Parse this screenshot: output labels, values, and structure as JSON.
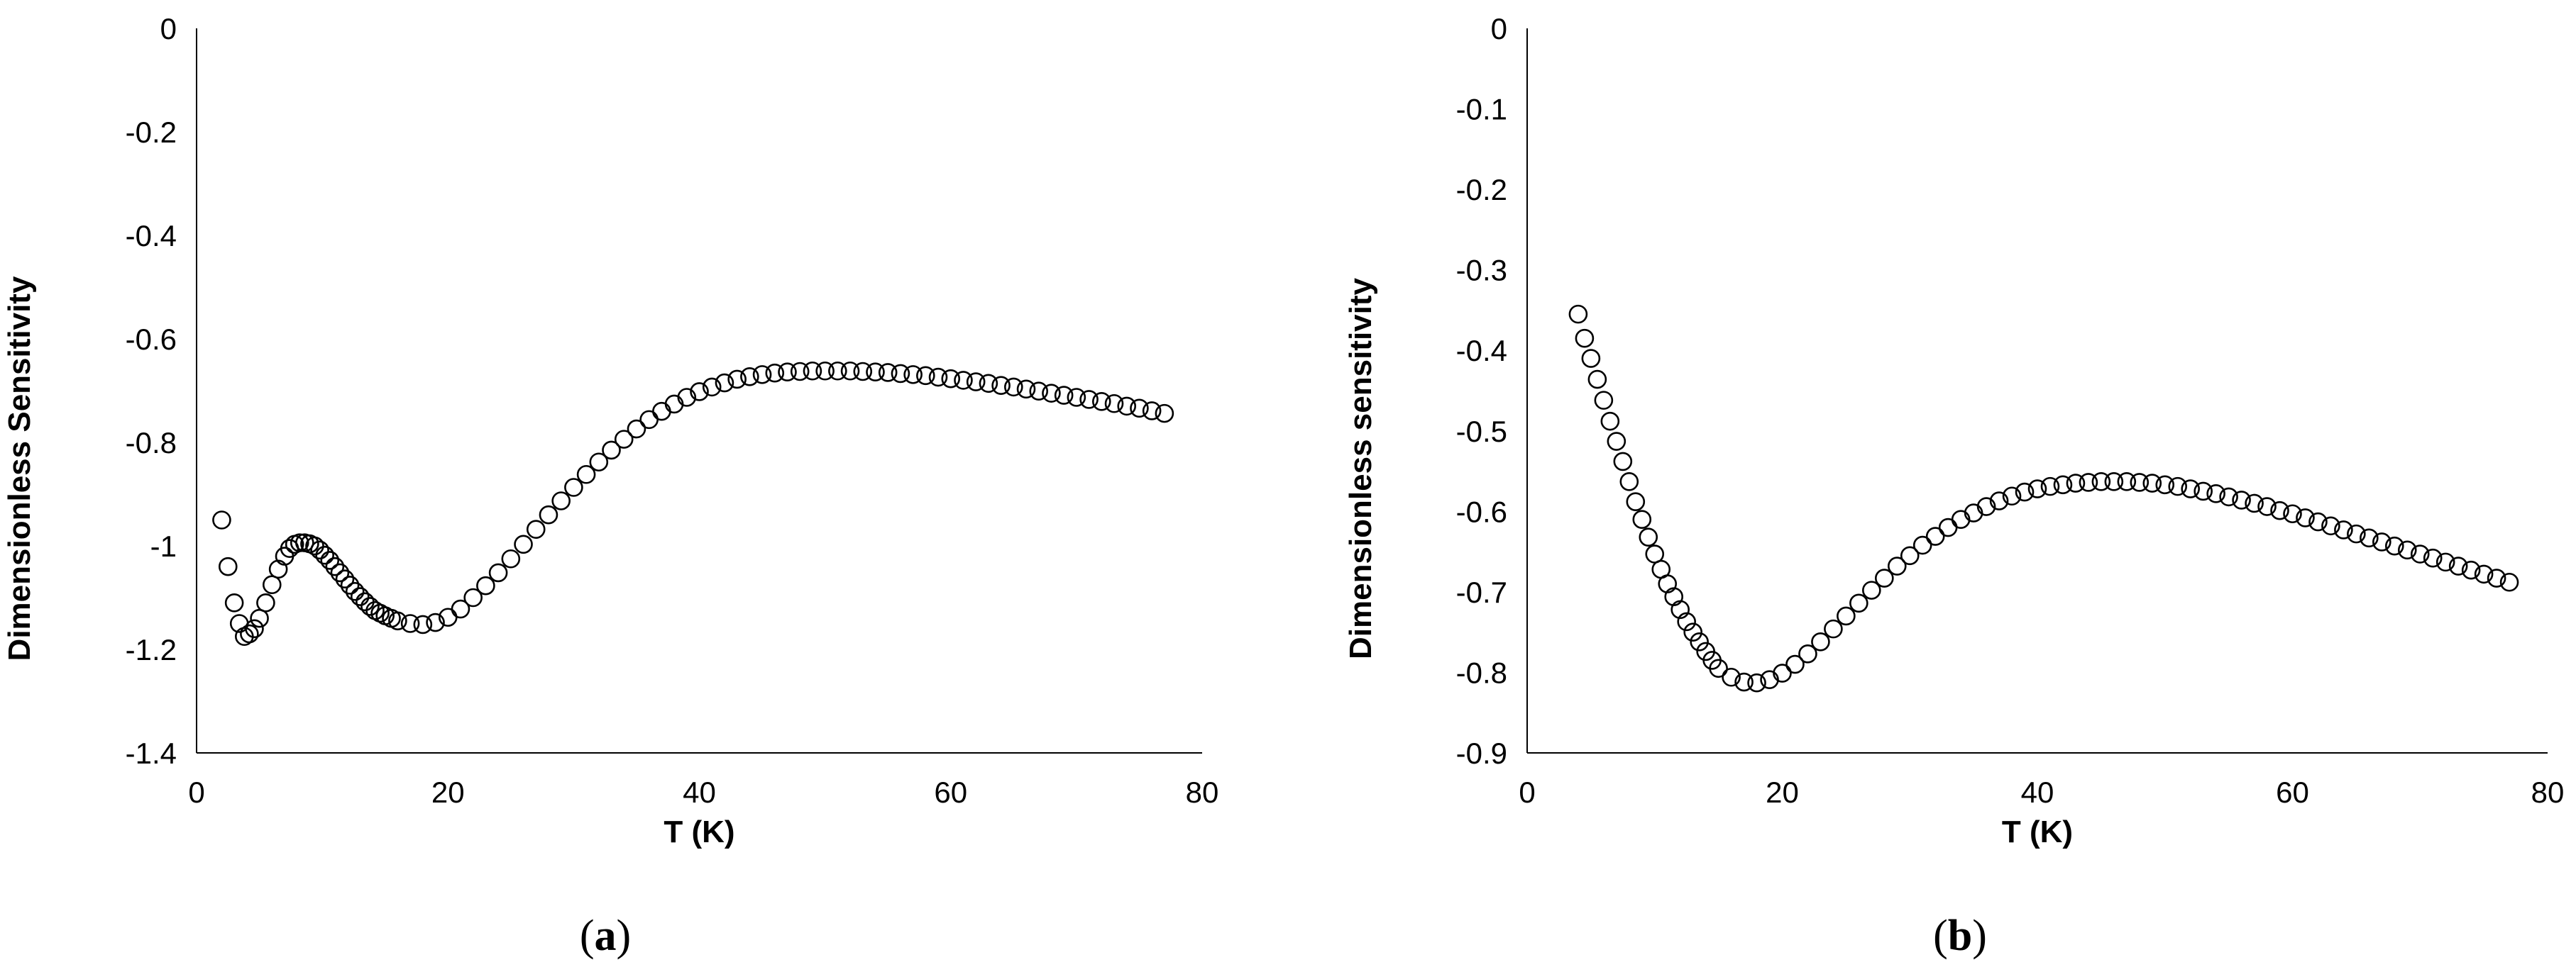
{
  "chart_data": [
    {
      "type": "scatter",
      "panel_label": "a",
      "xlabel": "T (K)",
      "ylabel": "Dimensionless Sensitivity",
      "xlim": [
        0,
        80
      ],
      "ylim": [
        -1.4,
        0
      ],
      "xticks": [
        0,
        20,
        40,
        60,
        80
      ],
      "yticks": [
        0,
        -0.2,
        -0.4,
        -0.6,
        -0.8,
        -1,
        -1.2,
        -1.4
      ],
      "xtick_labels": [
        "0",
        "20",
        "40",
        "60",
        "80"
      ],
      "ytick_labels": [
        "0",
        "-0.2",
        "-0.4",
        "-0.6",
        "-0.8",
        "-1",
        "-1.2",
        "-1.4"
      ],
      "grid": false,
      "legend": "none",
      "marker": "open-circle",
      "x": [
        2.0,
        2.5,
        3.0,
        3.4,
        3.8,
        4.2,
        4.6,
        5.0,
        5.5,
        6.0,
        6.5,
        7.0,
        7.4,
        7.8,
        8.2,
        8.6,
        9.0,
        9.4,
        9.8,
        10.2,
        10.6,
        11.0,
        11.4,
        11.8,
        12.2,
        12.6,
        13.0,
        13.4,
        13.8,
        14.2,
        14.6,
        15.0,
        15.5,
        16.0,
        17.0,
        18.0,
        19.0,
        20.0,
        21.0,
        22.0,
        23.0,
        24.0,
        25.0,
        26.0,
        27.0,
        28.0,
        29.0,
        30.0,
        31.0,
        32.0,
        33.0,
        34.0,
        35.0,
        36.0,
        37.0,
        38.0,
        39.0,
        40.0,
        41.0,
        42.0,
        43.0,
        44.0,
        45.0,
        46.0,
        47.0,
        48.0,
        49.0,
        50.0,
        51.0,
        52.0,
        53.0,
        54.0,
        55.0,
        56.0,
        57.0,
        58.0,
        59.0,
        60.0,
        61.0,
        62.0,
        63.0,
        64.0,
        65.0,
        66.0,
        67.0,
        68.0,
        69.0,
        70.0,
        71.0,
        72.0,
        73.0,
        74.0,
        75.0,
        76.0,
        77.0
      ],
      "y": [
        -0.95,
        -1.04,
        -1.11,
        -1.15,
        -1.175,
        -1.17,
        -1.16,
        -1.14,
        -1.11,
        -1.075,
        -1.045,
        -1.02,
        -1.005,
        -0.997,
        -0.994,
        -0.994,
        -0.996,
        -1.0,
        -1.008,
        -1.018,
        -1.028,
        -1.04,
        -1.052,
        -1.064,
        -1.076,
        -1.088,
        -1.098,
        -1.108,
        -1.117,
        -1.125,
        -1.13,
        -1.135,
        -1.14,
        -1.145,
        -1.15,
        -1.152,
        -1.148,
        -1.138,
        -1.122,
        -1.1,
        -1.077,
        -1.052,
        -1.025,
        -0.997,
        -0.968,
        -0.94,
        -0.913,
        -0.887,
        -0.862,
        -0.838,
        -0.815,
        -0.794,
        -0.774,
        -0.756,
        -0.74,
        -0.726,
        -0.713,
        -0.702,
        -0.693,
        -0.685,
        -0.678,
        -0.673,
        -0.669,
        -0.666,
        -0.664,
        -0.663,
        -0.662,
        -0.662,
        -0.662,
        -0.662,
        -0.663,
        -0.664,
        -0.665,
        -0.667,
        -0.669,
        -0.671,
        -0.674,
        -0.677,
        -0.68,
        -0.683,
        -0.686,
        -0.69,
        -0.693,
        -0.697,
        -0.701,
        -0.705,
        -0.709,
        -0.713,
        -0.717,
        -0.721,
        -0.725,
        -0.73,
        -0.734,
        -0.739,
        -0.744
      ]
    },
    {
      "type": "scatter",
      "panel_label": "b",
      "xlabel": "T (K)",
      "ylabel": "Dimensionless sensitivity",
      "xlim": [
        0,
        80
      ],
      "ylim": [
        -0.9,
        0
      ],
      "xticks": [
        0,
        20,
        40,
        60,
        80
      ],
      "yticks": [
        0,
        -0.1,
        -0.2,
        -0.3,
        -0.4,
        -0.5,
        -0.6,
        -0.7,
        -0.8,
        -0.9
      ],
      "xtick_labels": [
        "0",
        "20",
        "40",
        "60",
        "80"
      ],
      "ytick_labels": [
        "0",
        "-0.1",
        "-0.2",
        "-0.3",
        "-0.4",
        "-0.5",
        "-0.6",
        "-0.7",
        "-0.8",
        "-0.9"
      ],
      "grid": false,
      "legend": "none",
      "marker": "open-circle",
      "x": [
        4.0,
        4.5,
        5.0,
        5.5,
        6.0,
        6.5,
        7.0,
        7.5,
        8.0,
        8.5,
        9.0,
        9.5,
        10.0,
        10.5,
        11.0,
        11.5,
        12.0,
        12.5,
        13.0,
        13.5,
        14.0,
        14.5,
        15.0,
        16.0,
        17.0,
        18.0,
        19.0,
        20.0,
        21.0,
        22.0,
        23.0,
        24.0,
        25.0,
        26.0,
        27.0,
        28.0,
        29.0,
        30.0,
        31.0,
        32.0,
        33.0,
        34.0,
        35.0,
        36.0,
        37.0,
        38.0,
        39.0,
        40.0,
        41.0,
        42.0,
        43.0,
        44.0,
        45.0,
        46.0,
        47.0,
        48.0,
        49.0,
        50.0,
        51.0,
        52.0,
        53.0,
        54.0,
        55.0,
        56.0,
        57.0,
        58.0,
        59.0,
        60.0,
        61.0,
        62.0,
        63.0,
        64.0,
        65.0,
        66.0,
        67.0,
        68.0,
        69.0,
        70.0,
        71.0,
        72.0,
        73.0,
        74.0,
        75.0,
        76.0,
        77.0
      ],
      "y": [
        -0.355,
        -0.385,
        -0.41,
        -0.436,
        -0.462,
        -0.488,
        -0.513,
        -0.538,
        -0.563,
        -0.588,
        -0.61,
        -0.632,
        -0.653,
        -0.672,
        -0.69,
        -0.706,
        -0.722,
        -0.737,
        -0.75,
        -0.762,
        -0.774,
        -0.785,
        -0.795,
        -0.806,
        -0.812,
        -0.813,
        -0.809,
        -0.801,
        -0.79,
        -0.777,
        -0.762,
        -0.746,
        -0.73,
        -0.714,
        -0.698,
        -0.683,
        -0.668,
        -0.655,
        -0.642,
        -0.631,
        -0.62,
        -0.61,
        -0.602,
        -0.594,
        -0.587,
        -0.581,
        -0.576,
        -0.572,
        -0.569,
        -0.567,
        -0.565,
        -0.564,
        -0.563,
        -0.563,
        -0.563,
        -0.564,
        -0.565,
        -0.567,
        -0.569,
        -0.572,
        -0.575,
        -0.578,
        -0.582,
        -0.586,
        -0.59,
        -0.594,
        -0.599,
        -0.603,
        -0.608,
        -0.613,
        -0.618,
        -0.623,
        -0.628,
        -0.633,
        -0.638,
        -0.643,
        -0.648,
        -0.653,
        -0.658,
        -0.663,
        -0.668,
        -0.673,
        -0.678,
        -0.683,
        -0.688
      ]
    }
  ]
}
